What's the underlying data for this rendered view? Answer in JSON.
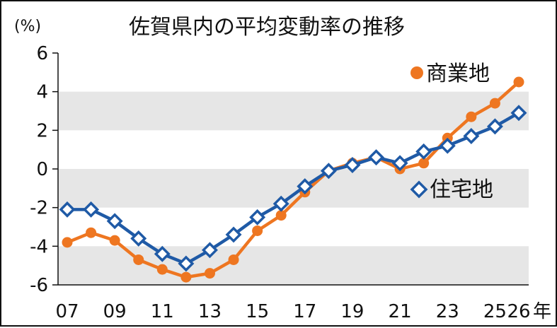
{
  "chart_data": {
    "type": "line",
    "title": "佐賀県内の平均変動率の推移",
    "y_unit": "(%)",
    "x_unit": "年",
    "ylim": [
      -6,
      6
    ],
    "yticks": [
      "6",
      "4",
      "2",
      "0",
      "-2",
      "-4",
      "-6"
    ],
    "x_tick_labels": [
      "07",
      "09",
      "11",
      "13",
      "15",
      "17",
      "19",
      "21",
      "23",
      "25",
      "26"
    ],
    "x": [
      2007,
      2008,
      2009,
      2010,
      2011,
      2012,
      2013,
      2014,
      2015,
      2016,
      2017,
      2018,
      2019,
      2020,
      2021,
      2022,
      2023,
      2024,
      2025,
      2026
    ],
    "bands": [
      [
        -6,
        -4
      ],
      [
        -2,
        0
      ],
      [
        2,
        4
      ]
    ],
    "series": [
      {
        "name": "商業地",
        "color": "#ee7621",
        "marker": "circle",
        "values": [
          -3.8,
          -3.3,
          -3.7,
          -4.7,
          -5.2,
          -5.6,
          -5.4,
          -4.7,
          -3.2,
          -2.4,
          -1.2,
          -0.1,
          0.3,
          0.6,
          0.0,
          0.3,
          1.6,
          2.7,
          3.4,
          4.5
        ]
      },
      {
        "name": "住宅地",
        "color": "#1f5aa6",
        "marker": "diamond",
        "values": [
          -2.1,
          -2.1,
          -2.7,
          -3.6,
          -4.4,
          -4.9,
          -4.2,
          -3.4,
          -2.5,
          -1.8,
          -0.9,
          -0.1,
          0.2,
          0.6,
          0.3,
          0.9,
          1.2,
          1.7,
          2.2,
          2.9
        ]
      }
    ]
  }
}
